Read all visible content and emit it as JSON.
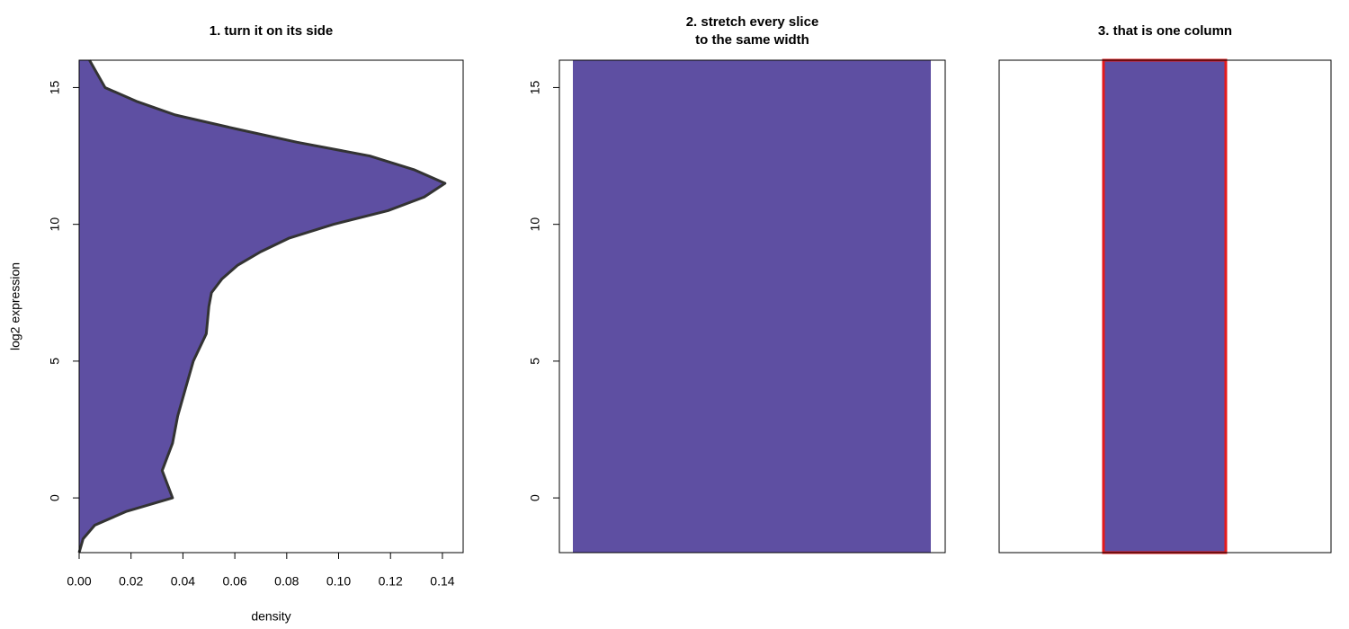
{
  "chart_data": [
    {
      "type": "density",
      "title": "1. turn it on its side",
      "xlabel": "density",
      "ylabel": "log2 expression",
      "x": [
        -2,
        -1.5,
        -1,
        -0.5,
        0,
        0.5,
        1,
        1.5,
        2,
        3,
        4,
        5,
        6,
        7,
        7.5,
        8,
        8.5,
        9,
        9.5,
        10,
        10.5,
        11,
        11.5,
        12,
        12.5,
        13,
        13.5,
        14,
        14.5,
        15,
        15.5,
        16
      ],
      "values": [
        0,
        0.0015,
        0.006,
        0.018,
        0.036,
        0.034,
        0.032,
        0.034,
        0.036,
        0.038,
        0.041,
        0.044,
        0.049,
        0.05,
        0.051,
        0.055,
        0.061,
        0.07,
        0.081,
        0.098,
        0.119,
        0.133,
        0.141,
        0.129,
        0.112,
        0.084,
        0.06,
        0.037,
        0.022,
        0.01,
        0.007,
        0.004
      ],
      "color": "#333333",
      "colorscale": [
        [
          0,
          "#5E4FA2"
        ],
        [
          0.008,
          "#3288BD"
        ],
        [
          0.033,
          "#66C2A5"
        ],
        [
          0.05,
          "#ABDDA4"
        ],
        [
          0.065,
          "#E6F598"
        ],
        [
          0.075,
          "#FFFFBF"
        ],
        [
          0.09,
          "#FEE08B"
        ],
        [
          0.1,
          "#FDAE61"
        ],
        [
          0.115,
          "#F46D43"
        ],
        [
          0.13,
          "#D53E4F"
        ],
        [
          0.141,
          "#C2294D"
        ]
      ],
      "xlim": [
        0,
        0.148
      ],
      "ylim": [
        -2,
        16
      ],
      "xticks": [
        {
          "value": 0,
          "label": "0.00"
        },
        0.02,
        0.04,
        0.06,
        0.08,
        {
          "value": 0.1,
          "label": "0.10"
        },
        0.12,
        0.14
      ],
      "yticks": [
        0,
        5,
        10,
        15
      ]
    },
    {
      "type": "strip",
      "title": [
        "2. stretch every slice",
        "to the same width"
      ],
      "ylim": [
        -2,
        16
      ],
      "yticks": [
        0,
        5,
        10,
        15
      ]
    },
    {
      "type": "strip",
      "title": "3. that is one column",
      "ylim": [
        -2,
        16
      ],
      "outline": "#E41A1C"
    }
  ]
}
